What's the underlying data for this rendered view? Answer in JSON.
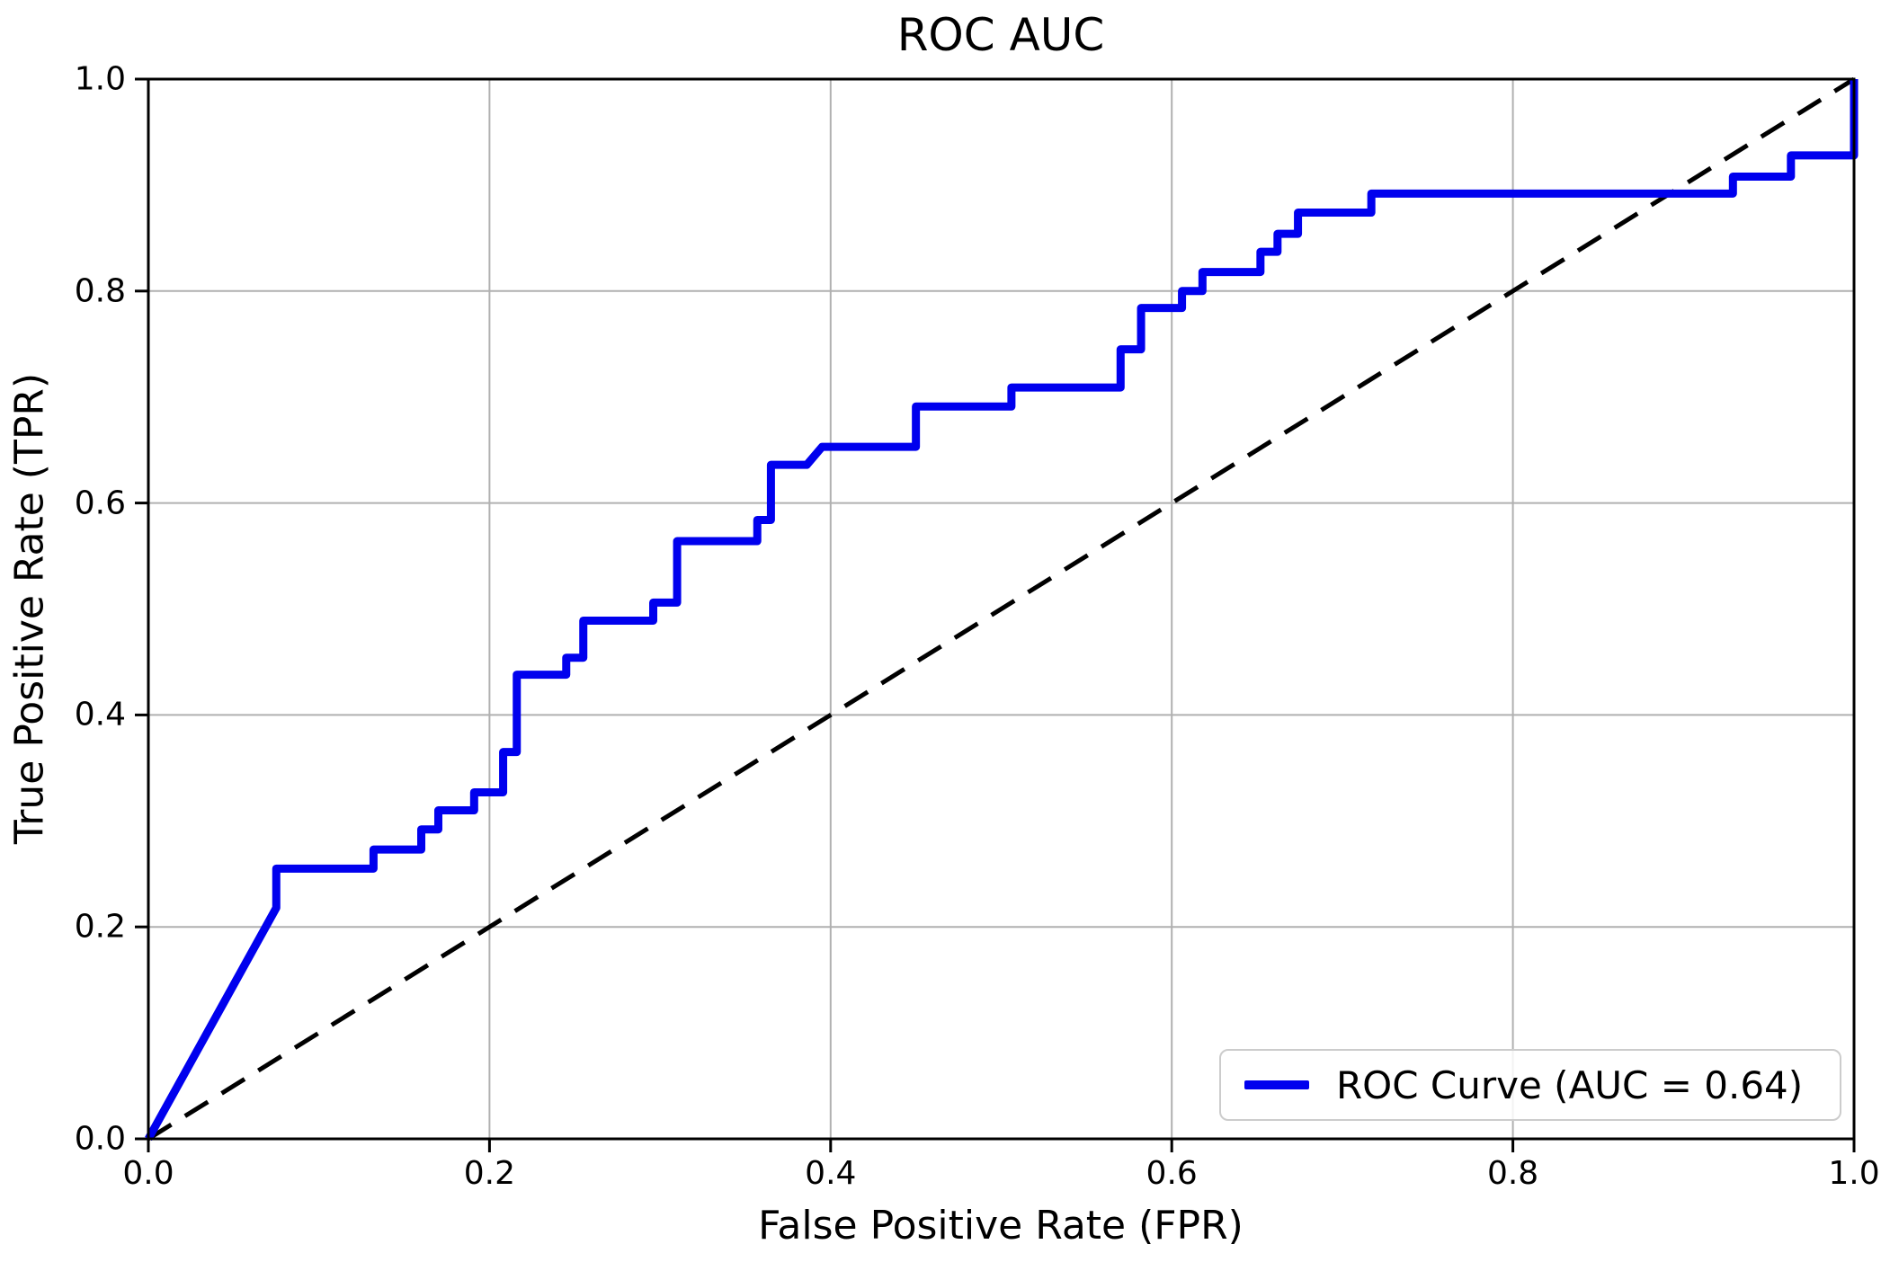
{
  "title": "ROC AUC",
  "axes": {
    "xlabel": "False Positive Rate (FPR)",
    "ylabel": "True Positive Rate (TPR)",
    "x_ticks": [
      "0.0",
      "0.2",
      "0.4",
      "0.6",
      "0.8",
      "1.0"
    ],
    "y_ticks": [
      "0.0",
      "0.2",
      "0.4",
      "0.6",
      "0.8",
      "1.0"
    ]
  },
  "legend": {
    "label": "ROC Curve (AUC = 0.64)"
  },
  "colors": {
    "curve": "#0000ee",
    "diagonal": "#000000",
    "grid": "#b0b0b0",
    "spine": "#000000"
  },
  "chart_data": {
    "type": "line",
    "title": "ROC AUC",
    "xlabel": "False Positive Rate (FPR)",
    "ylabel": "True Positive Rate (TPR)",
    "xlim": [
      0.0,
      1.0
    ],
    "ylim": [
      0.0,
      1.0
    ],
    "grid": true,
    "legend_position": "lower right",
    "auc": 0.64,
    "series": [
      {
        "name": "ROC Curve (AUC = 0.64)",
        "style": "solid",
        "color": "#0000ee",
        "points": [
          [
            0.0,
            0.0
          ],
          [
            0.075,
            0.218
          ],
          [
            0.075,
            0.255
          ],
          [
            0.132,
            0.255
          ],
          [
            0.132,
            0.273
          ],
          [
            0.16,
            0.273
          ],
          [
            0.16,
            0.292
          ],
          [
            0.17,
            0.292
          ],
          [
            0.17,
            0.31
          ],
          [
            0.191,
            0.31
          ],
          [
            0.191,
            0.327
          ],
          [
            0.208,
            0.327
          ],
          [
            0.208,
            0.365
          ],
          [
            0.216,
            0.365
          ],
          [
            0.216,
            0.438
          ],
          [
            0.245,
            0.438
          ],
          [
            0.245,
            0.454
          ],
          [
            0.255,
            0.454
          ],
          [
            0.255,
            0.489
          ],
          [
            0.296,
            0.489
          ],
          [
            0.296,
            0.506
          ],
          [
            0.31,
            0.506
          ],
          [
            0.31,
            0.564
          ],
          [
            0.357,
            0.564
          ],
          [
            0.357,
            0.584
          ],
          [
            0.365,
            0.584
          ],
          [
            0.365,
            0.636
          ],
          [
            0.386,
            0.636
          ],
          [
            0.395,
            0.653
          ],
          [
            0.45,
            0.653
          ],
          [
            0.45,
            0.691
          ],
          [
            0.506,
            0.691
          ],
          [
            0.506,
            0.709
          ],
          [
            0.57,
            0.709
          ],
          [
            0.57,
            0.745
          ],
          [
            0.582,
            0.745
          ],
          [
            0.582,
            0.784
          ],
          [
            0.606,
            0.784
          ],
          [
            0.606,
            0.8
          ],
          [
            0.618,
            0.8
          ],
          [
            0.618,
            0.818
          ],
          [
            0.652,
            0.818
          ],
          [
            0.652,
            0.837
          ],
          [
            0.662,
            0.837
          ],
          [
            0.662,
            0.854
          ],
          [
            0.674,
            0.854
          ],
          [
            0.674,
            0.874
          ],
          [
            0.717,
            0.874
          ],
          [
            0.717,
            0.892
          ],
          [
            0.929,
            0.892
          ],
          [
            0.929,
            0.908
          ],
          [
            0.963,
            0.908
          ],
          [
            0.963,
            0.928
          ],
          [
            1.0,
            0.928
          ],
          [
            1.0,
            1.0
          ]
        ]
      },
      {
        "name": "chance-diagonal",
        "style": "dashed",
        "color": "#000000",
        "points": [
          [
            0.0,
            0.0
          ],
          [
            1.0,
            1.0
          ]
        ]
      }
    ]
  }
}
